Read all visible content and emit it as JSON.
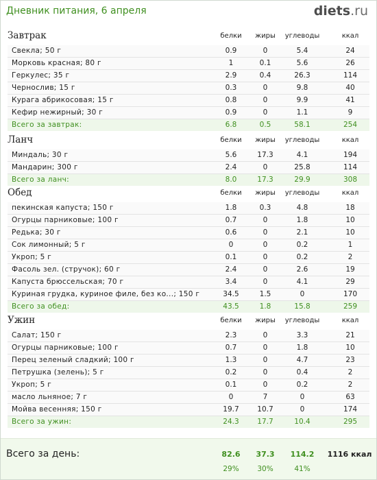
{
  "header": {
    "title": "Дневник питания, 6 апреля",
    "logo_main": "diets",
    "logo_tld": ".ru"
  },
  "columns": {
    "protein": "белки",
    "fat": "жиры",
    "carbs": "углеводы",
    "kcal": "ккал"
  },
  "meals": [
    {
      "title": "Завтрак",
      "items": [
        {
          "name": "Свекла; 50 г",
          "protein": "0.9",
          "fat": "0",
          "carbs": "5.4",
          "kcal": "24"
        },
        {
          "name": "Морковь красная; 80 г",
          "protein": "1",
          "fat": "0.1",
          "carbs": "5.6",
          "kcal": "26"
        },
        {
          "name": "Геркулес; 35 г",
          "protein": "2.9",
          "fat": "0.4",
          "carbs": "26.3",
          "kcal": "114"
        },
        {
          "name": "Чернослив; 15 г",
          "protein": "0.3",
          "fat": "0",
          "carbs": "9.8",
          "kcal": "40"
        },
        {
          "name": "Курага абрикосовая; 15 г",
          "protein": "0.8",
          "fat": "0",
          "carbs": "9.9",
          "kcal": "41"
        },
        {
          "name": "Кефир нежирный; 30 г",
          "protein": "0.9",
          "fat": "0",
          "carbs": "1.1",
          "kcal": "9"
        }
      ],
      "total": {
        "label": "Всего за завтрак:",
        "protein": "6.8",
        "fat": "0.5",
        "carbs": "58.1",
        "kcal": "254"
      }
    },
    {
      "title": "Ланч",
      "items": [
        {
          "name": "Миндаль; 30 г",
          "protein": "5.6",
          "fat": "17.3",
          "carbs": "4.1",
          "kcal": "194"
        },
        {
          "name": "Мандарин; 300 г",
          "protein": "2.4",
          "fat": "0",
          "carbs": "25.8",
          "kcal": "114"
        }
      ],
      "total": {
        "label": "Всего за ланч:",
        "protein": "8.0",
        "fat": "17.3",
        "carbs": "29.9",
        "kcal": "308"
      }
    },
    {
      "title": "Обед",
      "items": [
        {
          "name": "пекинская капуста; 150 г",
          "protein": "1.8",
          "fat": "0.3",
          "carbs": "4.8",
          "kcal": "18"
        },
        {
          "name": "Огурцы парниковые; 100 г",
          "protein": "0.7",
          "fat": "0",
          "carbs": "1.8",
          "kcal": "10"
        },
        {
          "name": "Редька; 30 г",
          "protein": "0.6",
          "fat": "0",
          "carbs": "2.1",
          "kcal": "10"
        },
        {
          "name": "Сок лимонный; 5 г",
          "protein": "0",
          "fat": "0",
          "carbs": "0.2",
          "kcal": "1"
        },
        {
          "name": "Укроп; 5 г",
          "protein": "0.1",
          "fat": "0",
          "carbs": "0.2",
          "kcal": "2"
        },
        {
          "name": "Фасоль зел. (стручок); 60 г",
          "protein": "2.4",
          "fat": "0",
          "carbs": "2.6",
          "kcal": "19"
        },
        {
          "name": "Капуста брюссельская; 70 г",
          "protein": "3.4",
          "fat": "0",
          "carbs": "4.1",
          "kcal": "29"
        },
        {
          "name": "Куриная грудка, куриное филе, без ко...; 150 г",
          "protein": "34.5",
          "fat": "1.5",
          "carbs": "0",
          "kcal": "170"
        }
      ],
      "total": {
        "label": "Всего за обед:",
        "protein": "43.5",
        "fat": "1.8",
        "carbs": "15.8",
        "kcal": "259"
      }
    },
    {
      "title": "Ужин",
      "items": [
        {
          "name": "Салат; 150 г",
          "protein": "2.3",
          "fat": "0",
          "carbs": "3.3",
          "kcal": "21"
        },
        {
          "name": "Огурцы парниковые; 100 г",
          "protein": "0.7",
          "fat": "0",
          "carbs": "1.8",
          "kcal": "10"
        },
        {
          "name": "Перец зеленый сладкий; 100 г",
          "protein": "1.3",
          "fat": "0",
          "carbs": "4.7",
          "kcal": "23"
        },
        {
          "name": "Петрушка (зелень); 5 г",
          "protein": "0.2",
          "fat": "0",
          "carbs": "0.4",
          "kcal": "2"
        },
        {
          "name": "Укроп; 5 г",
          "protein": "0.1",
          "fat": "0",
          "carbs": "0.2",
          "kcal": "2"
        },
        {
          "name": "масло льняное; 7 г",
          "protein": "0",
          "fat": "7",
          "carbs": "0",
          "kcal": "63"
        },
        {
          "name": "Мойва весенняя; 150 г",
          "protein": "19.7",
          "fat": "10.7",
          "carbs": "0",
          "kcal": "174"
        }
      ],
      "total": {
        "label": "Всего за ужин:",
        "protein": "24.3",
        "fat": "17.7",
        "carbs": "10.4",
        "kcal": "295"
      }
    }
  ],
  "day_total": {
    "label": "Всего за день:",
    "protein": "82.6",
    "fat": "37.3",
    "carbs": "114.2",
    "kcal": "1116 ккал",
    "protein_pct": "29%",
    "fat_pct": "30%",
    "carbs_pct": "41%"
  }
}
